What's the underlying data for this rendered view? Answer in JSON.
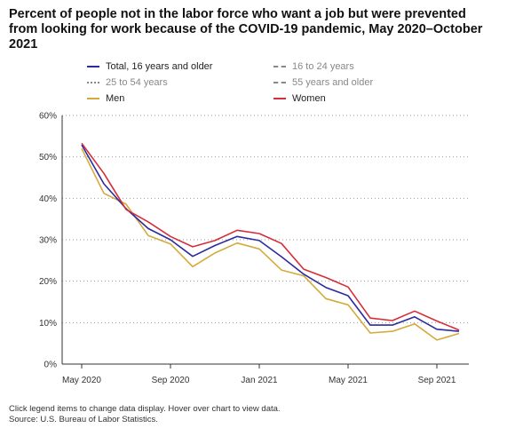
{
  "title": "Percent of people not in the labor force who want a job but were prevented from looking for work because of the COVID-19 pandemic, May 2020–October 2021",
  "legend": [
    {
      "label": "Total, 16 years and older",
      "color": "#2b2b9e",
      "style": "solid",
      "active": true
    },
    {
      "label": "16 to 24 years",
      "color": "#888888",
      "style": "dashed",
      "active": false
    },
    {
      "label": "25 to 54 years",
      "color": "#888888",
      "style": "dotted",
      "active": false
    },
    {
      "label": "55 years and older",
      "color": "#888888",
      "style": "dashed",
      "active": false
    },
    {
      "label": "Men",
      "color": "#d4aa3a",
      "style": "solid",
      "active": true
    },
    {
      "label": "Women",
      "color": "#d42e3a",
      "style": "solid",
      "active": true
    }
  ],
  "footer": {
    "note": "Click legend items to change data display. Hover over chart to view data.",
    "source": "Source: U.S. Bureau of Labor Statistics."
  },
  "chart_data": {
    "type": "line",
    "x": [
      "May 2020",
      "Jun 2020",
      "Jul 2020",
      "Aug 2020",
      "Sep 2020",
      "Oct 2020",
      "Nov 2020",
      "Dec 2020",
      "Jan 2021",
      "Feb 2021",
      "Mar 2021",
      "Apr 2021",
      "May 2021",
      "Jun 2021",
      "Jul 2021",
      "Aug 2021",
      "Sep 2021",
      "Oct 2021"
    ],
    "x_tick_labels": [
      "May 2020",
      "Sep 2020",
      "Jan 2021",
      "May 2021",
      "Sep 2021"
    ],
    "x_tick_positions": [
      "May 2020",
      "Sep 2020",
      "Jan 2021",
      "May 2021",
      "Sep 2021"
    ],
    "y_tick_labels": [
      "0%",
      "10%",
      "20%",
      "30%",
      "40%",
      "50%",
      "60%"
    ],
    "ylim": [
      0,
      60
    ],
    "grid": "horizontal dotted",
    "legend_position": "top",
    "series": [
      {
        "name": "Total, 16 years and older",
        "color": "#2b2b9e",
        "values": [
          52.9,
          43.5,
          37.5,
          32.7,
          30.0,
          26.0,
          28.6,
          30.8,
          29.8,
          25.9,
          21.7,
          18.5,
          16.5,
          9.4,
          9.4,
          11.4,
          8.4,
          7.9
        ]
      },
      {
        "name": "Men",
        "color": "#d4aa3a",
        "values": [
          52.0,
          41.2,
          38.6,
          31.0,
          29.0,
          23.5,
          26.8,
          29.2,
          27.8,
          22.7,
          21.3,
          15.8,
          14.3,
          7.5,
          7.9,
          9.7,
          5.8,
          7.4
        ]
      },
      {
        "name": "Women",
        "color": "#d42e3a",
        "values": [
          53.3,
          46.0,
          37.3,
          34.3,
          30.8,
          28.3,
          29.8,
          32.3,
          31.5,
          29.1,
          22.9,
          20.9,
          18.6,
          11.1,
          10.5,
          12.8,
          10.4,
          8.2
        ]
      }
    ]
  }
}
